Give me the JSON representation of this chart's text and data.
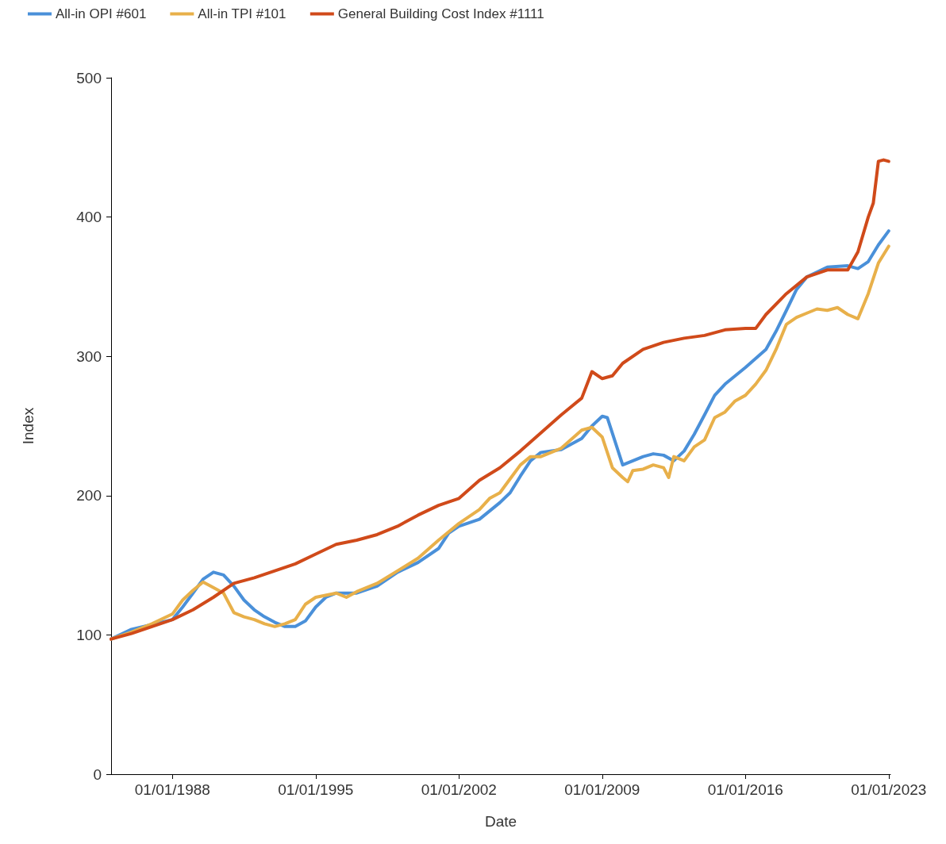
{
  "chart_data": {
    "type": "line",
    "xlabel": "Date",
    "ylabel": "Index",
    "xlim": [
      "1985-01-01",
      "2023-02-01"
    ],
    "xticks": [
      {
        "value": "1988-01-01",
        "label": "01/01/1988"
      },
      {
        "value": "1995-01-01",
        "label": "01/01/1995"
      },
      {
        "value": "2002-01-01",
        "label": "01/01/2002"
      },
      {
        "value": "2009-01-01",
        "label": "01/01/2009"
      },
      {
        "value": "2016-01-01",
        "label": "01/01/2016"
      },
      {
        "value": "2023-01-01",
        "label": "01/01/2023"
      }
    ],
    "ylim": [
      0,
      500
    ],
    "yticks": [
      0,
      100,
      200,
      300,
      400,
      500
    ],
    "grid": false,
    "legend": "top left",
    "marker": "none",
    "line_style": "solid",
    "series": [
      {
        "name": "All-in OPI #601",
        "color": "#4a90d9",
        "x": [
          "1985-01",
          "1986-01",
          "1988-01",
          "1988-07",
          "1989-01",
          "1989-07",
          "1990-01",
          "1990-07",
          "1991-01",
          "1991-07",
          "1992-01",
          "1992-07",
          "1993-01",
          "1993-07",
          "1994-01",
          "1994-07",
          "1995-01",
          "1995-07",
          "1996-01",
          "1997-01",
          "1998-01",
          "1999-01",
          "2000-01",
          "2001-01",
          "2001-07",
          "2002-01",
          "2003-01",
          "2004-01",
          "2004-07",
          "2005-01",
          "2005-07",
          "2006-01",
          "2007-01",
          "2008-01",
          "2008-07",
          "2009-01",
          "2009-04",
          "2010-01",
          "2011-01",
          "2011-07",
          "2012-01",
          "2012-07",
          "2013-01",
          "2013-07",
          "2014-01",
          "2014-07",
          "2015-01",
          "2016-01",
          "2017-01",
          "2017-07",
          "2018-01",
          "2018-07",
          "2019-01",
          "2020-01",
          "2021-01",
          "2021-07",
          "2022-01",
          "2022-07",
          "2023-01"
        ],
        "values": [
          97,
          104,
          111,
          120,
          130,
          140,
          145,
          143,
          135,
          125,
          118,
          113,
          109,
          106,
          106,
          110,
          120,
          127,
          130,
          130,
          135,
          145,
          152,
          162,
          173,
          178,
          183,
          195,
          202,
          214,
          225,
          231,
          233,
          241,
          250,
          257,
          256,
          222,
          228,
          230,
          229,
          225,
          232,
          244,
          258,
          272,
          280,
          292,
          305,
          318,
          333,
          348,
          357,
          364,
          365,
          363,
          368,
          380,
          390
        ]
      },
      {
        "name": "All-in TPI #101",
        "color": "#e8b04a",
        "x": [
          "1985-01",
          "1986-01",
          "1987-01",
          "1988-01",
          "1988-07",
          "1989-01",
          "1989-07",
          "1990-01",
          "1990-07",
          "1991-01",
          "1991-07",
          "1992-01",
          "1992-07",
          "1993-01",
          "1993-07",
          "1994-01",
          "1994-07",
          "1995-01",
          "1996-01",
          "1996-07",
          "1997-01",
          "1998-01",
          "1999-01",
          "2000-01",
          "2001-01",
          "2002-01",
          "2003-01",
          "2003-07",
          "2004-01",
          "2004-07",
          "2005-01",
          "2005-07",
          "2006-01",
          "2007-01",
          "2008-01",
          "2008-07",
          "2009-01",
          "2009-07",
          "2010-01",
          "2010-04",
          "2010-07",
          "2011-01",
          "2011-07",
          "2012-01",
          "2012-04",
          "2012-07",
          "2013-01",
          "2013-07",
          "2014-01",
          "2014-07",
          "2015-01",
          "2015-07",
          "2016-01",
          "2016-07",
          "2017-01",
          "2017-07",
          "2018-01",
          "2018-07",
          "2019-01",
          "2019-07",
          "2020-01",
          "2020-07",
          "2021-01",
          "2021-07",
          "2022-01",
          "2022-07",
          "2023-01"
        ],
        "values": [
          97,
          102,
          108,
          115,
          125,
          132,
          138,
          134,
          130,
          116,
          113,
          111,
          108,
          106,
          108,
          111,
          122,
          127,
          130,
          127,
          131,
          137,
          146,
          155,
          168,
          180,
          190,
          198,
          202,
          212,
          222,
          228,
          228,
          234,
          247,
          249,
          242,
          220,
          213,
          210,
          218,
          219,
          222,
          220,
          213,
          228,
          225,
          235,
          240,
          256,
          260,
          268,
          272,
          280,
          290,
          305,
          323,
          328,
          331,
          334,
          333,
          335,
          330,
          327,
          345,
          367,
          379
        ]
      },
      {
        "name": "General Building Cost Index #1111",
        "color": "#d04a1a",
        "x": [
          "1985-01",
          "1986-01",
          "1987-01",
          "1988-01",
          "1989-01",
          "1990-01",
          "1991-01",
          "1992-01",
          "1993-01",
          "1994-01",
          "1995-01",
          "1996-01",
          "1997-01",
          "1998-01",
          "1999-01",
          "2000-01",
          "2001-01",
          "2002-01",
          "2003-01",
          "2004-01",
          "2005-01",
          "2006-01",
          "2007-01",
          "2008-01",
          "2008-07",
          "2009-01",
          "2009-07",
          "2010-01",
          "2011-01",
          "2012-01",
          "2013-01",
          "2014-01",
          "2015-01",
          "2016-01",
          "2016-07",
          "2017-01",
          "2018-01",
          "2019-01",
          "2020-01",
          "2021-01",
          "2021-07",
          "2022-01",
          "2022-04",
          "2022-07",
          "2022-10",
          "2023-01"
        ],
        "values": [
          97,
          101,
          106,
          111,
          118,
          127,
          137,
          141,
          146,
          151,
          158,
          165,
          168,
          172,
          178,
          186,
          193,
          198,
          211,
          220,
          232,
          245,
          258,
          270,
          289,
          284,
          286,
          295,
          305,
          310,
          313,
          315,
          319,
          320,
          320,
          330,
          345,
          357,
          362,
          362,
          375,
          400,
          410,
          440,
          441,
          440
        ]
      }
    ]
  }
}
